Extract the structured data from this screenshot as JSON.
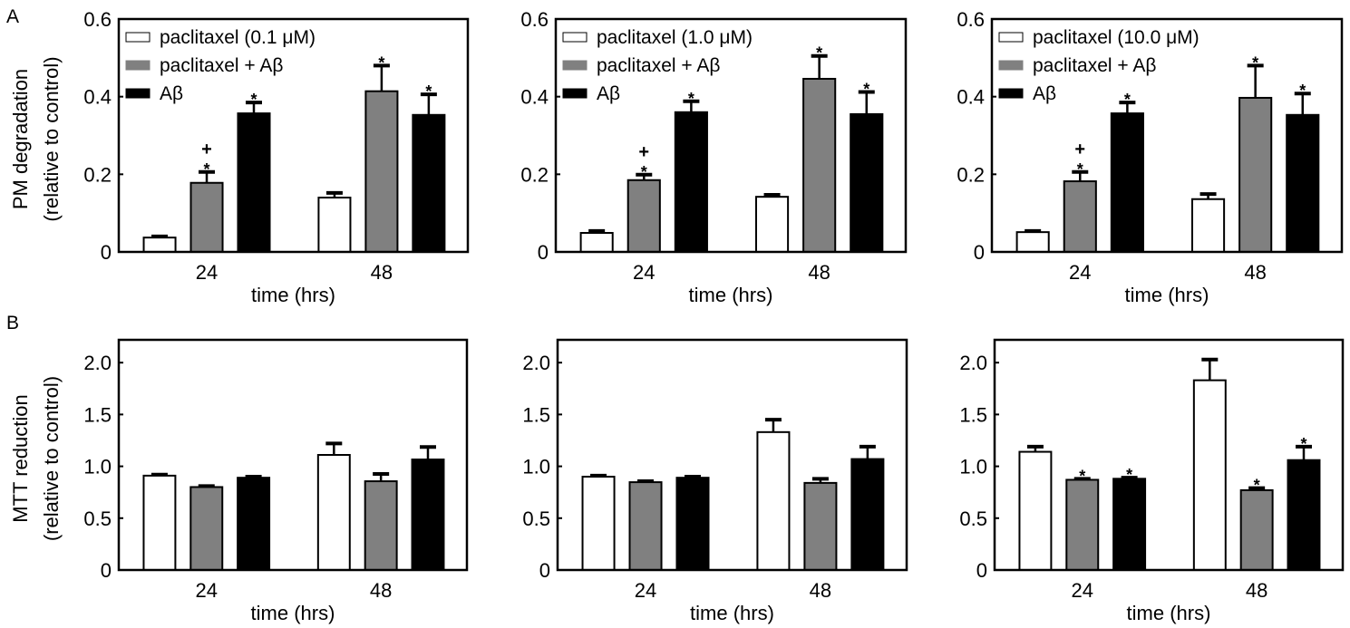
{
  "figure": {
    "row_labels": [
      "A",
      "B"
    ],
    "colors": {
      "paclitaxel": "#ffffff",
      "paclitaxel_abeta": "#808080",
      "abeta": "#000000",
      "edge": "#000000"
    }
  },
  "chart_data": [
    {
      "type": "bar",
      "row": "A",
      "col": 1,
      "title": "",
      "xlabel": "time (hrs)",
      "ylabel": "PM degradation",
      "ylabel2": "(relative to control)",
      "categories": [
        "24",
        "48"
      ],
      "ylim": [
        0,
        0.6
      ],
      "yticks": [
        0,
        0.2,
        0.4,
        0.6
      ],
      "ytick_labels": [
        "0",
        "0.2",
        "0.4",
        "0.6"
      ],
      "show_ylabel": true,
      "legend": "top-left",
      "series": [
        {
          "name": "paclitaxel (0.1 μM)",
          "color": "#ffffff",
          "values": [
            0.037,
            0.14
          ],
          "errors": [
            0.003,
            0.012
          ],
          "annotations": [
            "",
            ""
          ]
        },
        {
          "name": "paclitaxel + Aβ",
          "color": "#808080",
          "values": [
            0.178,
            0.414
          ],
          "errors": [
            0.028,
            0.066
          ],
          "annotations": [
            "+\n*",
            "*"
          ]
        },
        {
          "name": "Aβ",
          "color": "#000000",
          "values": [
            0.357,
            0.353
          ],
          "errors": [
            0.028,
            0.053
          ],
          "annotations": [
            "*",
            "*"
          ]
        }
      ]
    },
    {
      "type": "bar",
      "row": "A",
      "col": 2,
      "title": "",
      "xlabel": "time (hrs)",
      "ylabel": "",
      "ylabel2": "",
      "categories": [
        "24",
        "48"
      ],
      "ylim": [
        0,
        0.6
      ],
      "yticks": [
        0,
        0.2,
        0.4,
        0.6
      ],
      "ytick_labels": [
        "0",
        "0.2",
        "0.4",
        "0.6"
      ],
      "show_ylabel": false,
      "legend": "top-left",
      "series": [
        {
          "name": "paclitaxel (1.0 μM)",
          "color": "#ffffff",
          "values": [
            0.049,
            0.142
          ],
          "errors": [
            0.005,
            0.005
          ],
          "annotations": [
            "",
            ""
          ]
        },
        {
          "name": "paclitaxel + Aβ",
          "color": "#808080",
          "values": [
            0.185,
            0.446
          ],
          "errors": [
            0.014,
            0.059
          ],
          "annotations": [
            "+\n*",
            "*"
          ]
        },
        {
          "name": "Aβ",
          "color": "#000000",
          "values": [
            0.36,
            0.355
          ],
          "errors": [
            0.028,
            0.057
          ],
          "annotations": [
            "*",
            "*"
          ]
        }
      ]
    },
    {
      "type": "bar",
      "row": "A",
      "col": 3,
      "title": "",
      "xlabel": "time (hrs)",
      "ylabel": "",
      "ylabel2": "",
      "categories": [
        "24",
        "48"
      ],
      "ylim": [
        0,
        0.6
      ],
      "yticks": [
        0,
        0.2,
        0.4,
        0.6
      ],
      "ytick_labels": [
        "0",
        "0.2",
        "0.4",
        "0.6"
      ],
      "show_ylabel": false,
      "legend": "top-left",
      "series": [
        {
          "name": "paclitaxel (10.0 μM)",
          "color": "#ffffff",
          "values": [
            0.051,
            0.136
          ],
          "errors": [
            0.003,
            0.013
          ],
          "annotations": [
            "",
            ""
          ]
        },
        {
          "name": "paclitaxel + Aβ",
          "color": "#808080",
          "values": [
            0.182,
            0.397
          ],
          "errors": [
            0.024,
            0.083
          ],
          "annotations": [
            "+\n*",
            "*"
          ]
        },
        {
          "name": "Aβ",
          "color": "#000000",
          "values": [
            0.357,
            0.353
          ],
          "errors": [
            0.028,
            0.055
          ],
          "annotations": [
            "*",
            "*"
          ]
        }
      ]
    },
    {
      "type": "bar",
      "row": "B",
      "col": 1,
      "title": "",
      "xlabel": "time (hrs)",
      "ylabel": "MTT reduction",
      "ylabel2": "(relative to control)",
      "categories": [
        "24",
        "48"
      ],
      "ylim": [
        0,
        2.22
      ],
      "yticks": [
        0,
        0.5,
        1.0,
        1.5,
        2.0
      ],
      "ytick_labels": [
        "0",
        "0.5",
        "1.0",
        "1.5",
        "2.0"
      ],
      "show_ylabel": true,
      "legend": "none",
      "series": [
        {
          "name": "paclitaxel (0.1 μM)",
          "color": "#ffffff",
          "values": [
            0.91,
            1.11
          ],
          "errors": [
            0.01,
            0.11
          ],
          "annotations": [
            "",
            ""
          ]
        },
        {
          "name": "paclitaxel + Aβ",
          "color": "#808080",
          "values": [
            0.8,
            0.856
          ],
          "errors": [
            0.01,
            0.07
          ],
          "annotations": [
            "",
            ""
          ]
        },
        {
          "name": "Aβ",
          "color": "#000000",
          "values": [
            0.89,
            1.066
          ],
          "errors": [
            0.01,
            0.12
          ],
          "annotations": [
            "",
            ""
          ]
        }
      ]
    },
    {
      "type": "bar",
      "row": "B",
      "col": 2,
      "title": "",
      "xlabel": "time (hrs)",
      "ylabel": "",
      "ylabel2": "",
      "categories": [
        "24",
        "48"
      ],
      "ylim": [
        0,
        2.22
      ],
      "yticks": [
        0,
        0.5,
        1.0,
        1.5,
        2.0
      ],
      "ytick_labels": [
        "0",
        "0.5",
        "1.0",
        "1.5",
        "2.0"
      ],
      "show_ylabel": false,
      "legend": "none",
      "series": [
        {
          "name": "paclitaxel (1.0 μM)",
          "color": "#ffffff",
          "values": [
            0.9,
            1.33
          ],
          "errors": [
            0.01,
            0.12
          ],
          "annotations": [
            "",
            ""
          ]
        },
        {
          "name": "paclitaxel + Aβ",
          "color": "#808080",
          "values": [
            0.847,
            0.84
          ],
          "errors": [
            0.01,
            0.04
          ],
          "annotations": [
            "",
            ""
          ]
        },
        {
          "name": "Aβ",
          "color": "#000000",
          "values": [
            0.89,
            1.07
          ],
          "errors": [
            0.01,
            0.12
          ],
          "annotations": [
            "",
            ""
          ]
        }
      ]
    },
    {
      "type": "bar",
      "row": "B",
      "col": 3,
      "title": "",
      "xlabel": "time (hrs)",
      "ylabel": "",
      "ylabel2": "",
      "categories": [
        "24",
        "48"
      ],
      "ylim": [
        0,
        2.22
      ],
      "yticks": [
        0,
        0.5,
        1.0,
        1.5,
        2.0
      ],
      "ytick_labels": [
        "0",
        "0.5",
        "1.0",
        "1.5",
        "2.0"
      ],
      "show_ylabel": false,
      "legend": "none",
      "series": [
        {
          "name": "paclitaxel (10.0 μM)",
          "color": "#ffffff",
          "values": [
            1.14,
            1.83
          ],
          "errors": [
            0.05,
            0.2
          ],
          "annotations": [
            "",
            ""
          ]
        },
        {
          "name": "paclitaxel + Aβ",
          "color": "#808080",
          "values": [
            0.87,
            0.77
          ],
          "errors": [
            0.01,
            0.02
          ],
          "annotations": [
            "*",
            "*"
          ]
        },
        {
          "name": "Aβ",
          "color": "#000000",
          "values": [
            0.88,
            1.06
          ],
          "errors": [
            0.01,
            0.13
          ],
          "annotations": [
            "*",
            "*"
          ]
        }
      ]
    }
  ]
}
